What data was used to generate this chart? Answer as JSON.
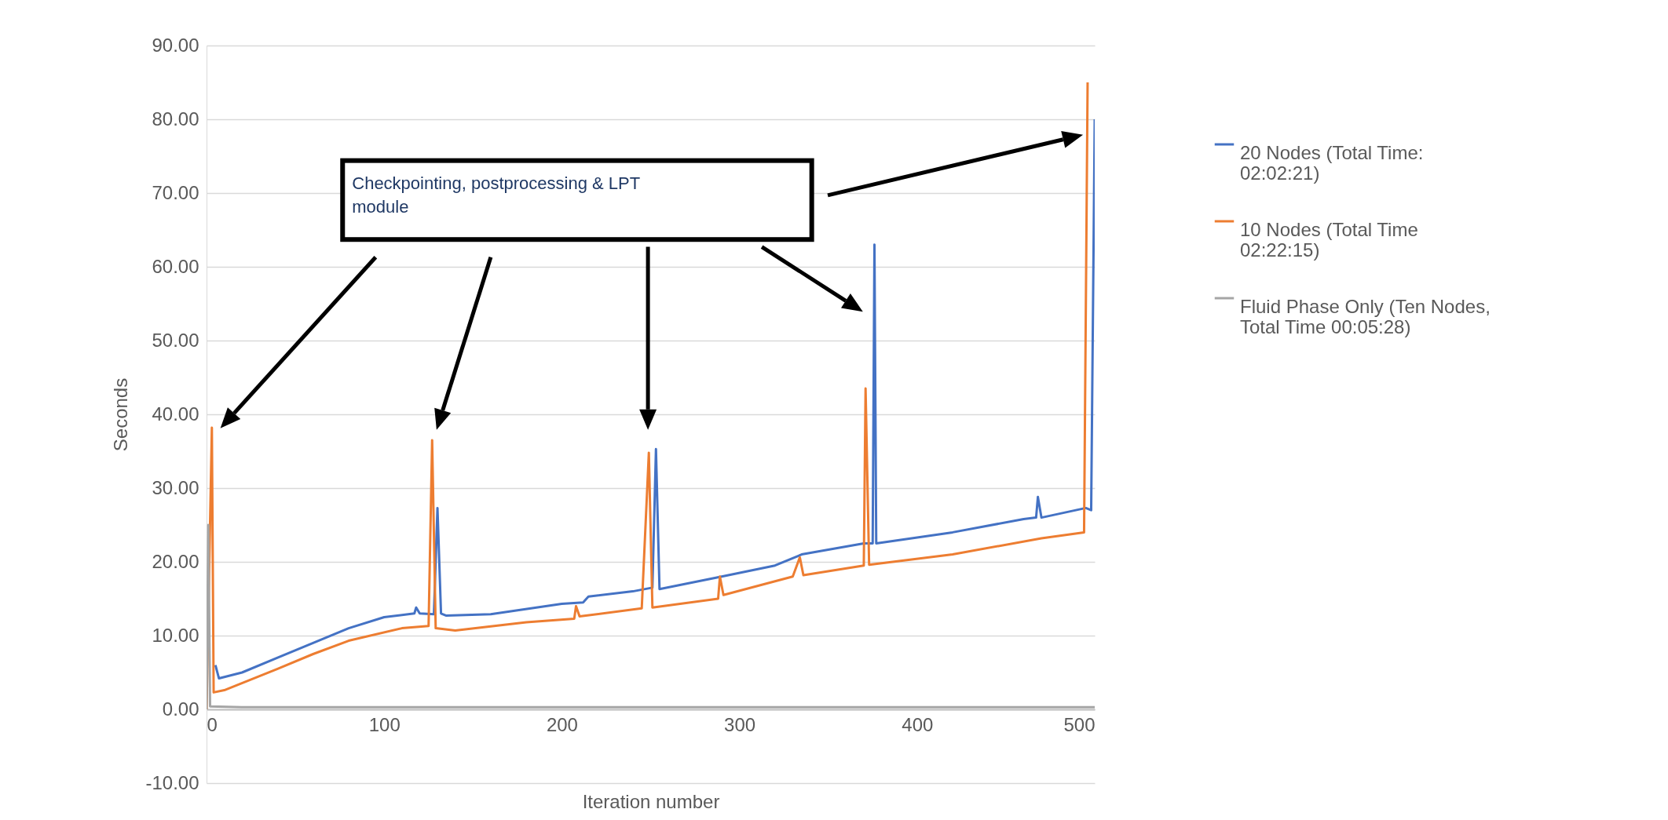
{
  "chart_data": {
    "type": "line",
    "xlabel": "Iteration number",
    "ylabel": "Seconds",
    "annotations": [
      "Checkpointing, postprocessing & LPT module"
    ],
    "xlim": [
      0,
      500
    ],
    "xticks": [
      0,
      100,
      200,
      300,
      400,
      500
    ],
    "ylim": [
      -10,
      90
    ],
    "yticks": [
      {
        "value": -10,
        "label": "-10.00"
      },
      {
        "value": 0,
        "label": "0.00"
      },
      {
        "value": 10,
        "label": "10.00"
      },
      {
        "value": 20,
        "label": "20.00"
      },
      {
        "value": 30,
        "label": "30.00"
      },
      {
        "value": 40,
        "label": "40.00"
      },
      {
        "value": 50,
        "label": "50.00"
      },
      {
        "value": 60,
        "label": "60.00"
      },
      {
        "value": 70,
        "label": "70.00"
      },
      {
        "value": 80,
        "label": "80.00"
      },
      {
        "value": 90,
        "label": "90.00"
      }
    ],
    "grid": "y",
    "legend": "right",
    "marker": "none",
    "line_style": "solid",
    "series": [
      {
        "name": "20 Nodes (Total Time: 02:02:21)",
        "color": "#4472c4",
        "x": [
          5,
          7,
          20,
          40,
          60,
          80,
          100,
          117,
          118,
          120,
          128,
          130,
          132,
          135,
          160,
          200,
          212,
          215,
          240,
          251,
          253,
          255,
          290,
          320,
          335,
          370,
          375,
          376,
          377,
          420,
          460,
          467,
          468,
          470,
          495,
          498,
          500
        ],
        "values": [
          6,
          4.2,
          5,
          7,
          9,
          11,
          12.5,
          13,
          13.8,
          13,
          12.9,
          27.3,
          13,
          12.7,
          12.9,
          14.3,
          14.5,
          15.3,
          16,
          16.5,
          35.3,
          16.3,
          18,
          19.5,
          21,
          22.5,
          22.5,
          63,
          22.5,
          24,
          25.8,
          26,
          28.8,
          26,
          27.3,
          27,
          80
        ]
      },
      {
        "name": "10 Nodes (Total Time 02:22:15)",
        "color": "#ed7d31",
        "x": [
          0,
          3,
          4,
          10,
          40,
          60,
          80,
          110,
          125,
          127,
          129,
          140,
          180,
          207,
          208,
          210,
          245,
          249,
          251,
          288,
          289,
          291,
          330,
          334,
          336,
          370,
          371,
          373,
          420,
          470,
          494,
          496
        ],
        "values": [
          0,
          38.2,
          2.3,
          2.6,
          5.5,
          7.5,
          9.3,
          11,
          11.3,
          36.5,
          11,
          10.7,
          11.8,
          12.3,
          14,
          12.6,
          13.7,
          34.8,
          13.8,
          15,
          18,
          15.5,
          18,
          20.6,
          18.2,
          19.5,
          43.5,
          19.6,
          21,
          23.2,
          24,
          85
        ]
      },
      {
        "name": "Fluid Phase Only (Ten Nodes, Total Time 00:05:28)",
        "color": "#a5a5a5",
        "x": [
          0,
          1,
          2,
          20,
          100,
          300,
          500
        ],
        "values": [
          0,
          25,
          0.4,
          0.3,
          0.3,
          0.3,
          0.3
        ]
      }
    ]
  }
}
